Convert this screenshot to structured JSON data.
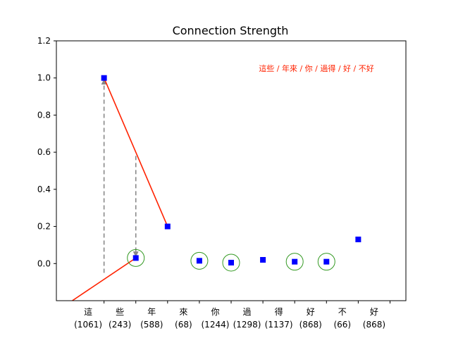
{
  "chart_data": {
    "type": "scatter",
    "title": "Connection Strength",
    "annotation": "這些 / 年來 / 你 / 過得 / 好 / 不好",
    "annotation_color": "#ff2200",
    "ylim": [
      -0.2,
      1.2
    ],
    "yticks": [
      "0.0",
      "0.2",
      "0.4",
      "0.6",
      "0.8",
      "1.0",
      "1.2"
    ],
    "grid": false,
    "categories": [
      {
        "char": "這",
        "count": "(1061)"
      },
      {
        "char": "些",
        "count": "(243)"
      },
      {
        "char": "年",
        "count": "(588)"
      },
      {
        "char": "來",
        "count": "(68)"
      },
      {
        "char": "你",
        "count": "(1244)"
      },
      {
        "char": "過",
        "count": "(1298)"
      },
      {
        "char": "得",
        "count": "(1137)"
      },
      {
        "char": "好",
        "count": "(868)"
      },
      {
        "char": "不",
        "count": "(66)"
      },
      {
        "char": "好",
        "count": "(868)"
      }
    ],
    "points": [
      {
        "x": 1.5,
        "y": 1.0
      },
      {
        "x": 2.5,
        "y": 0.03
      },
      {
        "x": 3.5,
        "y": 0.2
      },
      {
        "x": 4.5,
        "y": 0.015
      },
      {
        "x": 5.5,
        "y": 0.005
      },
      {
        "x": 6.5,
        "y": 0.02
      },
      {
        "x": 7.5,
        "y": 0.01
      },
      {
        "x": 8.5,
        "y": 0.01
      },
      {
        "x": 9.5,
        "y": 0.13
      }
    ],
    "circled_points": [
      2.5,
      4.5,
      5.5,
      7.5,
      8.5
    ],
    "red_lines": [
      [
        [
          0.5,
          -0.2
        ],
        [
          2.5,
          0.03
        ]
      ],
      [
        [
          1.5,
          1.0
        ],
        [
          3.5,
          0.2
        ]
      ]
    ],
    "dashed_arrows": [
      {
        "x": 1.5,
        "from": -0.05,
        "to": 0.98
      },
      {
        "x": 2.5,
        "from": 0.58,
        "to": 0.05
      }
    ],
    "marker_color": "#0000ff",
    "line_color": "#ff2200",
    "circle_color": "#339922",
    "arrow_color": "#888888"
  }
}
